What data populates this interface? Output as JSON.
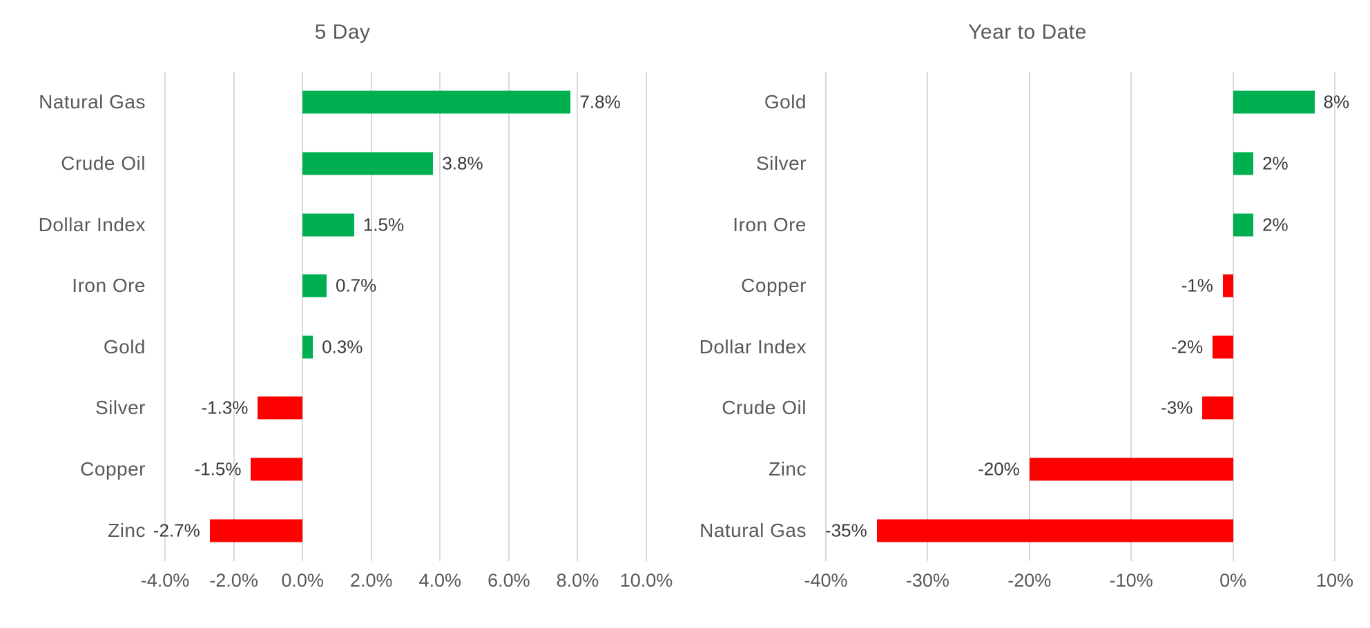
{
  "page": {
    "background": "#FFFFFF"
  },
  "chart_data": [
    {
      "type": "bar",
      "orientation": "horizontal",
      "title": "5 Day",
      "categories": [
        "Natural Gas",
        "Crude Oil",
        "Dollar Index",
        "Iron Ore",
        "Gold",
        "Silver",
        "Copper",
        "Zinc"
      ],
      "values": [
        7.8,
        3.8,
        1.5,
        0.7,
        0.3,
        -1.3,
        -1.5,
        -2.7
      ],
      "value_labels": [
        "7.8%",
        "3.8%",
        "1.5%",
        "0.7%",
        "0.3%",
        "-1.3%",
        "-1.5%",
        "-2.7%"
      ],
      "xlabel": "",
      "ylabel": "",
      "xlim": [
        -4,
        10
      ],
      "ticks": [
        {
          "value": -4,
          "label": "-4.0%"
        },
        {
          "value": -2,
          "label": "-2.0%"
        },
        {
          "value": 0,
          "label": "0.0%"
        },
        {
          "value": 2,
          "label": "2.0%"
        },
        {
          "value": 4,
          "label": "4.0%"
        },
        {
          "value": 6,
          "label": "6.0%"
        },
        {
          "value": 8,
          "label": "8.0%"
        },
        {
          "value": 10,
          "label": "10.0%"
        }
      ],
      "grid": "vertical",
      "legend": "none",
      "positive_color": "#00B050",
      "negative_color": "#FF0000",
      "gridline_color": "#D9D9D9",
      "text_color": "#595959",
      "value_label_color": "#3A3A3A"
    },
    {
      "type": "bar",
      "orientation": "horizontal",
      "title": "Year to Date",
      "categories": [
        "Gold",
        "Silver",
        "Iron Ore",
        "Copper",
        "Dollar Index",
        "Crude Oil",
        "Zinc",
        "Natural Gas"
      ],
      "values": [
        8,
        2,
        2,
        -1,
        -2,
        -3,
        -20,
        -35
      ],
      "value_labels": [
        "8%",
        "2%",
        "2%",
        "-1%",
        "-2%",
        "-3%",
        "-20%",
        "-35%"
      ],
      "xlabel": "",
      "ylabel": "",
      "xlim": [
        -40,
        10
      ],
      "ticks": [
        {
          "value": -40,
          "label": "-40%"
        },
        {
          "value": -30,
          "label": "-30%"
        },
        {
          "value": -20,
          "label": "-20%"
        },
        {
          "value": -10,
          "label": "-10%"
        },
        {
          "value": 0,
          "label": "0%"
        },
        {
          "value": 10,
          "label": "10%"
        }
      ],
      "grid": "vertical",
      "legend": "none",
      "positive_color": "#00B050",
      "negative_color": "#FF0000",
      "gridline_color": "#D9D9D9",
      "text_color": "#595959",
      "value_label_color": "#3A3A3A"
    }
  ]
}
